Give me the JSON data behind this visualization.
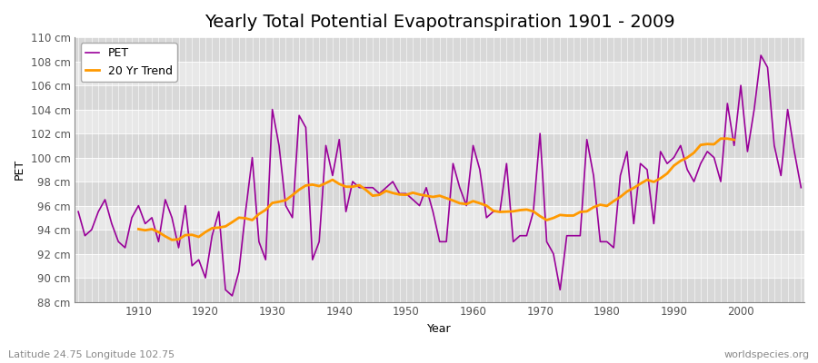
{
  "title": "Yearly Total Potential Evapotranspiration 1901 - 2009",
  "xlabel": "Year",
  "ylabel": "PET",
  "subtitle_left": "Latitude 24.75 Longitude 102.75",
  "subtitle_right": "worldspecies.org",
  "pet_color": "#990099",
  "trend_color": "#ff9900",
  "background_light": "#e8e8e8",
  "background_dark": "#d8d8d8",
  "grid_color": "#ffffff",
  "ylim": [
    88,
    110
  ],
  "ytick_step": 2,
  "fig_bg": "#ffffff",
  "years": [
    1901,
    1902,
    1903,
    1904,
    1905,
    1906,
    1907,
    1908,
    1909,
    1910,
    1911,
    1912,
    1913,
    1914,
    1915,
    1916,
    1917,
    1918,
    1919,
    1920,
    1921,
    1922,
    1923,
    1924,
    1925,
    1926,
    1927,
    1928,
    1929,
    1930,
    1931,
    1932,
    1933,
    1934,
    1935,
    1936,
    1937,
    1938,
    1939,
    1940,
    1941,
    1942,
    1943,
    1944,
    1945,
    1946,
    1947,
    1948,
    1949,
    1950,
    1951,
    1952,
    1953,
    1954,
    1955,
    1956,
    1957,
    1958,
    1959,
    1960,
    1961,
    1962,
    1963,
    1964,
    1965,
    1966,
    1967,
    1968,
    1969,
    1970,
    1971,
    1972,
    1973,
    1974,
    1975,
    1976,
    1977,
    1978,
    1979,
    1980,
    1981,
    1982,
    1983,
    1984,
    1985,
    1986,
    1987,
    1988,
    1989,
    1990,
    1991,
    1992,
    1993,
    1994,
    1995,
    1996,
    1997,
    1998,
    1999,
    2000,
    2001,
    2002,
    2003,
    2004,
    2005,
    2006,
    2007,
    2008,
    2009
  ],
  "pet_values": [
    95.5,
    93.5,
    94.0,
    95.5,
    96.5,
    94.5,
    93.0,
    92.5,
    95.0,
    96.0,
    94.5,
    95.0,
    93.0,
    96.5,
    95.0,
    92.5,
    96.0,
    91.0,
    91.5,
    90.0,
    93.5,
    95.5,
    89.0,
    88.5,
    90.5,
    95.5,
    100.0,
    93.0,
    91.5,
    104.0,
    101.0,
    96.0,
    95.0,
    103.5,
    102.5,
    91.5,
    93.0,
    101.0,
    98.5,
    101.5,
    95.5,
    98.0,
    97.5,
    97.5,
    97.5,
    97.0,
    97.5,
    98.0,
    97.0,
    97.0,
    96.5,
    96.0,
    97.5,
    95.5,
    93.0,
    93.0,
    99.5,
    97.5,
    96.0,
    101.0,
    99.0,
    95.0,
    95.5,
    95.5,
    99.5,
    93.0,
    93.5,
    93.5,
    95.5,
    102.0,
    93.0,
    92.0,
    89.0,
    93.5,
    93.5,
    93.5,
    101.5,
    98.5,
    93.0,
    93.0,
    92.5,
    98.5,
    100.5,
    94.5,
    99.5,
    99.0,
    94.5,
    100.5,
    99.5,
    100.0,
    101.0,
    99.0,
    98.0,
    99.5,
    100.5,
    100.0,
    98.0,
    104.5,
    101.0,
    106.0,
    100.5,
    104.0,
    108.5,
    107.5,
    101.0,
    98.5,
    104.0,
    100.5,
    97.5
  ],
  "legend_loc": "upper left",
  "pet_label": "PET",
  "trend_label": "20 Yr Trend",
  "trend_window": 20,
  "title_fontsize": 14,
  "axis_label_fontsize": 9,
  "tick_fontsize": 8.5,
  "subtitle_fontsize": 8,
  "legend_fontsize": 9
}
